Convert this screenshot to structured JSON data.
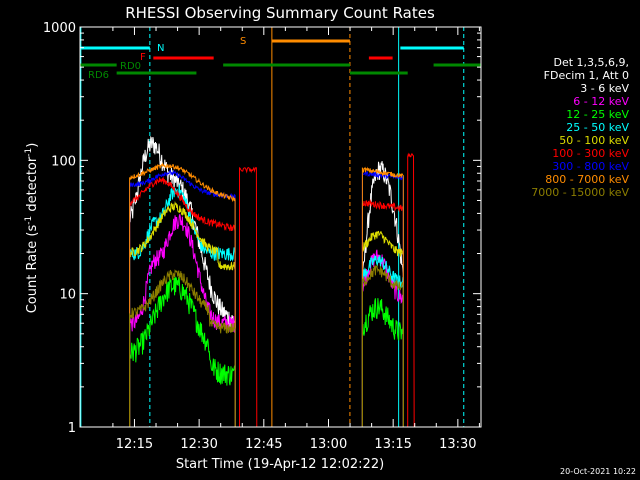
{
  "chart_data": {
    "type": "line",
    "title": "RHESSI Observing Summary Count Rates",
    "xlabel": "Start Time (19-Apr-12 12:02:22)",
    "ylabel_main": "Count Rate (s",
    "ylabel_sup1": "-1",
    "ylabel_mid": " detector",
    "ylabel_sup2": "-1",
    "ylabel_end": ")",
    "yscale": "log",
    "ylim": [
      1,
      1000
    ],
    "xlim_minutes": [
      0,
      93
    ],
    "y_ticks": [
      {
        "value": 1,
        "label": "1"
      },
      {
        "value": 10,
        "label": "10"
      },
      {
        "value": 100,
        "label": "100"
      },
      {
        "value": 1000,
        "label": "1000"
      }
    ],
    "x_ticks": [
      {
        "minute": 12.63,
        "label": "12:15"
      },
      {
        "minute": 27.63,
        "label": "12:30"
      },
      {
        "minute": 42.63,
        "label": "12:45"
      },
      {
        "minute": 57.63,
        "label": "13:00"
      },
      {
        "minute": 72.63,
        "label": "13:15"
      },
      {
        "minute": 87.63,
        "label": "13:30"
      }
    ],
    "legend_header": [
      "Det 1,3,5,6,9,",
      "FDecim 1, Att 0"
    ],
    "series": [
      {
        "name": "3 - 6 keV",
        "color": "#ffffff"
      },
      {
        "name": "6 - 12 keV",
        "color": "#ff00ff"
      },
      {
        "name": "12 - 25 keV",
        "color": "#00ff00"
      },
      {
        "name": "25 - 50 keV",
        "color": "#00ffff"
      },
      {
        "name": "50 - 100 keV",
        "color": "#dddd00"
      },
      {
        "name": "100 - 300 keV",
        "color": "#ff0000"
      },
      {
        "name": "300 - 800 keV",
        "color": "#0000ff"
      },
      {
        "name": "800 - 7000 keV",
        "color": "#ff8c00"
      },
      {
        "name": "7000 - 15000 keV",
        "color": "#8b7d00"
      }
    ],
    "flags": [
      {
        "label": "F",
        "color": "#ff0000"
      },
      {
        "label": "RD0",
        "color": "#008800"
      },
      {
        "label": "RD6",
        "color": "#008800"
      },
      {
        "label": "N",
        "color": "#00ffff"
      },
      {
        "label": "S",
        "color": "#ff8c00"
      }
    ],
    "timestamp": "20-Oct-2021 10:22"
  }
}
